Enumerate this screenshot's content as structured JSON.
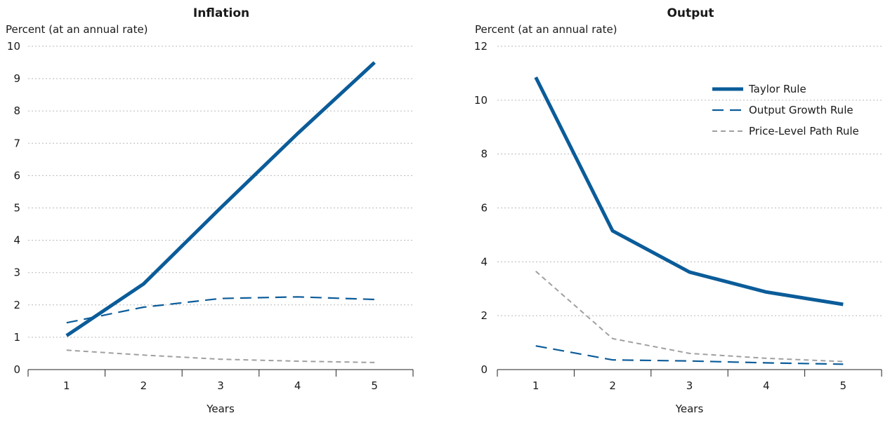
{
  "colors": {
    "taylor": "#0b5c99",
    "output_growth": "#0b5c99",
    "price_level": "#a0a0a0"
  },
  "legend": {
    "placement": "top-right",
    "entries": [
      "Taylor Rule",
      "Output Growth Rule",
      "Price-Level Path Rule"
    ]
  },
  "chart_data": [
    {
      "type": "line",
      "title": "Inflation",
      "ylabel": "Percent (at an annual rate)",
      "xlabel": "Years",
      "x": [
        1,
        2,
        3,
        4,
        5
      ],
      "xticks": [
        "1",
        "2",
        "3",
        "4",
        "5"
      ],
      "ylim": [
        0,
        10
      ],
      "yticks": [
        0,
        1,
        2,
        3,
        4,
        5,
        6,
        7,
        8,
        9,
        10
      ],
      "grid": true,
      "series": [
        {
          "name": "Taylor Rule",
          "style": "solid",
          "values": [
            1.05,
            2.65,
            5.0,
            7.3,
            9.5
          ]
        },
        {
          "name": "Output Growth Rule",
          "style": "dashed",
          "values": [
            1.45,
            1.93,
            2.2,
            2.25,
            2.17
          ]
        },
        {
          "name": "Price-Level Path Rule",
          "style": "dotted",
          "values": [
            0.6,
            0.45,
            0.32,
            0.26,
            0.22
          ]
        }
      ]
    },
    {
      "type": "line",
      "title": "Output",
      "ylabel": "Percent (at an annual rate)",
      "xlabel": "Years",
      "x": [
        1,
        2,
        3,
        4,
        5
      ],
      "xticks": [
        "1",
        "2",
        "3",
        "4",
        "5"
      ],
      "ylim": [
        0,
        12
      ],
      "yticks": [
        0,
        2,
        4,
        6,
        8,
        10,
        12
      ],
      "grid": true,
      "series": [
        {
          "name": "Taylor Rule",
          "style": "solid",
          "values": [
            10.85,
            5.15,
            3.62,
            2.88,
            2.42
          ]
        },
        {
          "name": "Output Growth Rule",
          "style": "dashed",
          "values": [
            0.88,
            0.36,
            0.32,
            0.25,
            0.2
          ]
        },
        {
          "name": "Price-Level Path Rule",
          "style": "dotted",
          "values": [
            3.65,
            1.15,
            0.6,
            0.42,
            0.3
          ]
        }
      ]
    }
  ]
}
